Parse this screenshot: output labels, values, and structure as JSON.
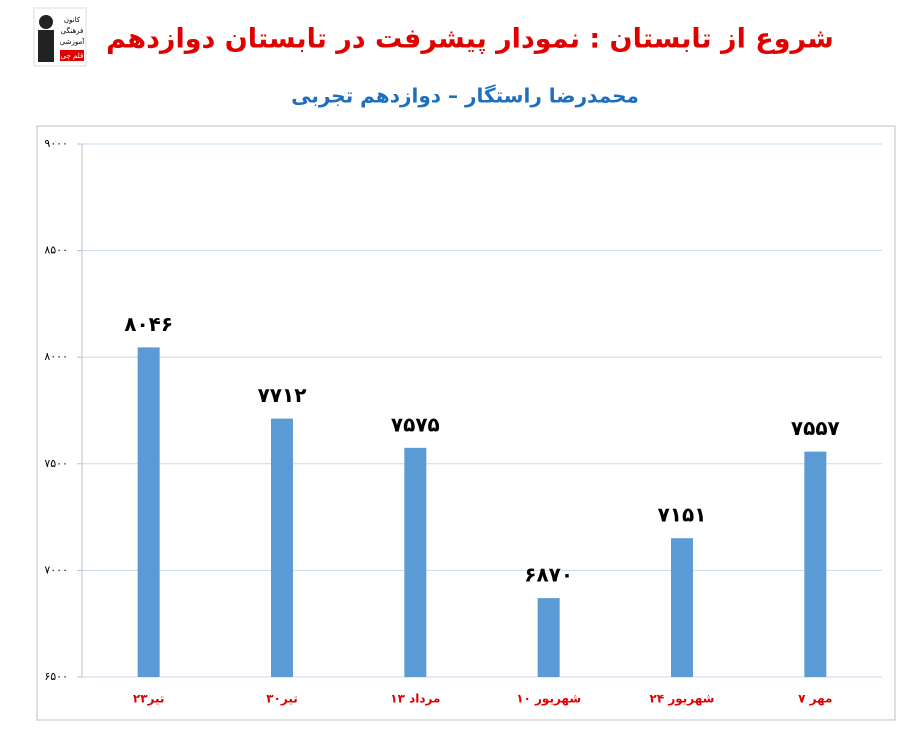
{
  "logo": {
    "lines": [
      "کانون",
      "فرهنگی",
      "آموزشی",
      "قلم چی"
    ]
  },
  "chart_data": {
    "type": "bar",
    "title": "شروع از تابستان : نمودار پیشرفت در تابستان دوازدهم",
    "subtitle": "محمدرضا راستگار – دوازدهم تجربی",
    "categories": [
      "۲۳تیر",
      "۳۰تیر",
      "۱۳ مرداد",
      "۱۰ شهریور",
      "۲۴ شهریور",
      "۷ مهر"
    ],
    "values": [
      8046,
      7712,
      7575,
      6870,
      7151,
      7557
    ],
    "value_labels": [
      "۸۰۴۶",
      "۷۷۱۲",
      "۷۵۷۵",
      "۶۸۷۰",
      "۷۱۵۱",
      "۷۵۵۷"
    ],
    "color": "#5b9bd5",
    "ylim": [
      6500,
      9000
    ],
    "yticks": [
      {
        "value": 6500,
        "label": "۶۵۰۰"
      },
      {
        "value": 7000,
        "label": "۷۰۰۰"
      },
      {
        "value": 7500,
        "label": "۷۵۰۰"
      },
      {
        "value": 8000,
        "label": "۸۰۰۰"
      },
      {
        "value": 8500,
        "label": "۸۵۰۰"
      },
      {
        "value": 9000,
        "label": "۹۰۰۰"
      }
    ],
    "grid": true
  }
}
